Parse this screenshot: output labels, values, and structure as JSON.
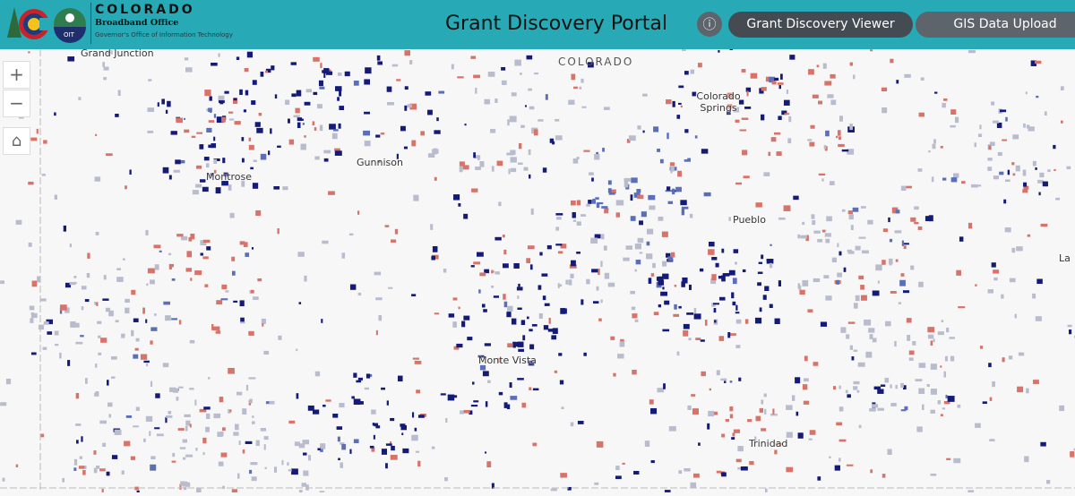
{
  "header": {
    "brand_name": "COLORADO",
    "brand_sub": "Broadband Office",
    "brand_dept": "Governor's Office of Information Technology",
    "oit_label": "OIT",
    "title": "Grant Discovery Portal",
    "info_icon": "info-icon",
    "nav": [
      {
        "label": "Grant Discovery Viewer",
        "active": true
      },
      {
        "label": "GIS Data Upload",
        "active": false
      }
    ]
  },
  "map": {
    "controls": {
      "zoom_in": "+",
      "zoom_out": "−",
      "home": "⌂"
    },
    "state_label": "COLORADO",
    "cities": [
      "Grand Junction",
      "Colorado Springs",
      "Gunnison",
      "Montrose",
      "Pueblo",
      "Monte Vista",
      "Trinidad",
      "La"
    ],
    "colors": {
      "navy": "#141a78",
      "blue": "#5a6fb8",
      "gray": "#b9bccd",
      "red": "#d8736a",
      "black": "#111111",
      "background": "#f7f7f7"
    }
  }
}
